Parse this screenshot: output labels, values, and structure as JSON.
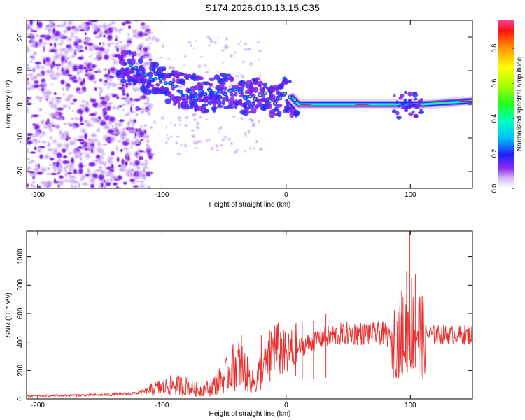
{
  "title": "S174.2026.010.13.15.C35",
  "colorbar": {
    "label": "Normalized spectral amplitude",
    "ticks": [
      "0.0",
      "0.2",
      "0.4",
      "0.6",
      "0.8"
    ],
    "tick_values": [
      0.0,
      0.2,
      0.4,
      0.6,
      0.8
    ],
    "range": [
      0,
      0.96
    ]
  },
  "chart_data": [
    {
      "type": "heatmap",
      "xlabel": "Height of straight line (km)",
      "ylabel": "Frequency (Hz)",
      "xlim": [
        -209,
        150
      ],
      "ylim": [
        -25,
        25
      ],
      "xticks": [
        -200,
        -100,
        0,
        100
      ],
      "xtick_labels": [
        "-200",
        "-100",
        "0",
        "100"
      ],
      "yticks": [
        -20,
        -10,
        0,
        10,
        20
      ],
      "ytick_labels": [
        "-20",
        "-10",
        "0",
        "10",
        "20"
      ],
      "ridge": {
        "x": [
          -135,
          -120,
          -110,
          -100,
          -90,
          -80,
          -70,
          -60,
          -50,
          -40,
          -30,
          -20,
          -10,
          0,
          5,
          10,
          20,
          40,
          60,
          80,
          90,
          100,
          110,
          130,
          150
        ],
        "y": [
          11,
          10,
          8,
          6,
          5,
          4,
          3,
          3,
          4,
          3,
          2,
          3,
          1,
          3,
          2,
          0,
          0,
          0,
          0,
          0,
          0,
          0,
          0,
          0.5,
          1
        ]
      }
    },
    {
      "type": "line",
      "xlabel": "Height of straight line (km)",
      "ylabel": "SNR (10 * v/v)",
      "xlim": [
        -209,
        150
      ],
      "ylim": [
        0,
        1180
      ],
      "xticks": [
        -200,
        -100,
        0,
        100
      ],
      "xtick_labels": [
        "-200",
        "-100",
        "0",
        "100"
      ],
      "yticks": [
        0,
        200,
        400,
        600,
        800,
        1000
      ],
      "ytick_labels": [
        "0",
        "200",
        "400",
        "600",
        "800",
        "1000"
      ],
      "series": [
        {
          "name": "SNR",
          "color": "#e8302e",
          "x": [
            -209,
            -180,
            -150,
            -120,
            -100,
            -90,
            -80,
            -70,
            -60,
            -50,
            -40,
            -35,
            -30,
            -25,
            -20,
            -15,
            -10,
            -5,
            0,
            10,
            20,
            30,
            40,
            50,
            60,
            70,
            80,
            85,
            90,
            95,
            100,
            105,
            110,
            120,
            130,
            140,
            150
          ],
          "y": [
            20,
            25,
            28,
            40,
            80,
            100,
            90,
            60,
            80,
            150,
            250,
            230,
            150,
            100,
            220,
            260,
            380,
            340,
            300,
            360,
            400,
            430,
            450,
            460,
            460,
            460,
            460,
            400,
            420,
            450,
            500,
            480,
            460,
            450,
            450,
            450,
            450
          ]
        }
      ],
      "peaks": {
        "x": [
          -36,
          -20,
          -13,
          13,
          22,
          32,
          90,
          93,
          97,
          99.5,
          101,
          104,
          107,
          110
        ],
        "y": [
          450,
          450,
          480,
          540,
          550,
          600,
          700,
          760,
          900,
          1180,
          850,
          880,
          740,
          560
        ]
      }
    }
  ]
}
